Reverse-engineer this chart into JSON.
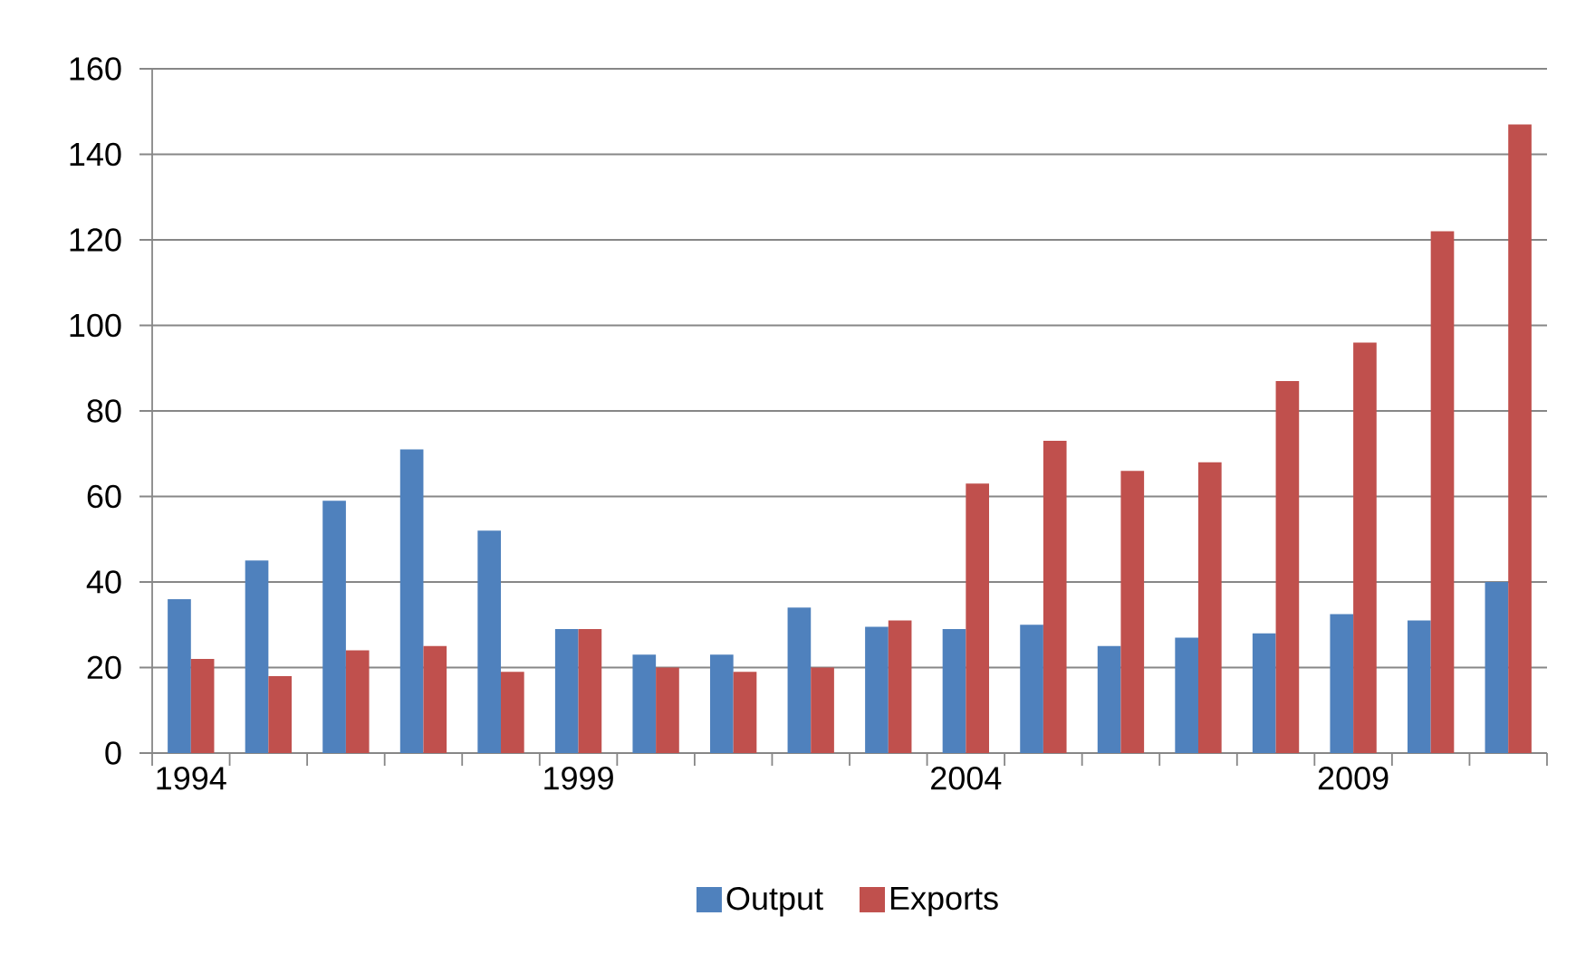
{
  "chart_data": {
    "type": "bar",
    "categories": [
      "1994",
      null,
      null,
      null,
      null,
      "1999",
      null,
      null,
      null,
      null,
      "2004",
      null,
      null,
      null,
      null,
      "2009",
      null,
      null
    ],
    "series": [
      {
        "name": "Output",
        "color": "#4f81bd",
        "values": [
          36,
          45,
          59,
          71,
          52,
          29,
          23,
          23,
          34,
          29.5,
          29,
          30,
          25,
          27,
          28,
          32.5,
          31,
          40
        ]
      },
      {
        "name": "Exports",
        "color": "#c0504d",
        "values": [
          22,
          18,
          24,
          25,
          19,
          29,
          20,
          19,
          20,
          31,
          63,
          73,
          66,
          68,
          87,
          96,
          122,
          147
        ]
      }
    ],
    "ylim": [
      0,
      160
    ],
    "yticks": [
      0,
      20,
      40,
      60,
      80,
      100,
      120,
      140,
      160
    ],
    "grid": "y",
    "legend": "bottom"
  }
}
